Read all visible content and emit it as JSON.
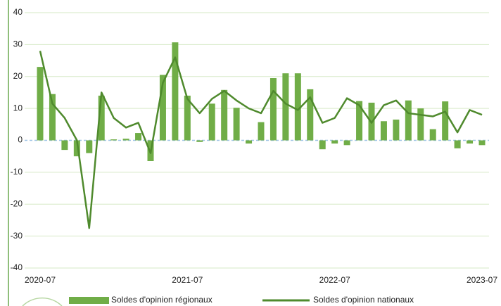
{
  "chart_data": {
    "type": "combo",
    "categories": [
      "2020-07",
      null,
      null,
      null,
      null,
      null,
      null,
      null,
      null,
      null,
      null,
      null,
      "2021-07",
      null,
      null,
      null,
      null,
      null,
      null,
      null,
      null,
      null,
      null,
      null,
      "2022-07",
      null,
      null,
      null,
      null,
      null,
      null,
      null,
      null,
      null,
      null,
      null,
      "2023-07"
    ],
    "series": [
      {
        "name": "Soldes d'opinion régionaux",
        "type": "bar",
        "color": "#70ad47",
        "values": [
          23,
          14.5,
          -3,
          -5,
          -4,
          14,
          0.3,
          0.5,
          2.3,
          -6.5,
          20.5,
          30.7,
          14,
          -0.5,
          11.5,
          15.8,
          10.2,
          -1,
          5.7,
          19.5,
          21,
          21,
          16,
          -2.8,
          -1,
          -1.5,
          12.3,
          11.8,
          6,
          6.5,
          12.5,
          10,
          3.5,
          12.2,
          -2.5,
          -1,
          -1.5
        ]
      },
      {
        "name": "Soldes d'opinion nationaux",
        "type": "line",
        "color": "#4f8a2d",
        "values": [
          28,
          11.5,
          7,
          0,
          -27.5,
          15,
          7,
          4,
          5.5,
          -4,
          18,
          26,
          13,
          8.5,
          13,
          15.5,
          12.5,
          10,
          8.5,
          15.5,
          11.5,
          9.5,
          13.5,
          5.5,
          7,
          13.2,
          11,
          5.5,
          11,
          12.5,
          8.5,
          8,
          7.5,
          9,
          2.5,
          9.5,
          8
        ]
      }
    ],
    "ylim": [
      -40,
      40
    ],
    "yticks": [
      -40,
      -30,
      -20,
      -10,
      0,
      10,
      20,
      30,
      40
    ],
    "grid": true
  }
}
